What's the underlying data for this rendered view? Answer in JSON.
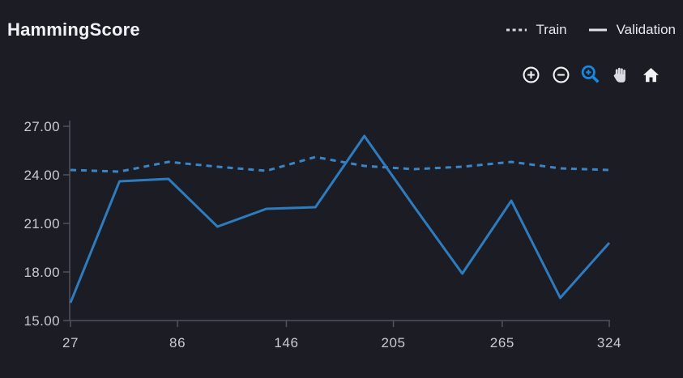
{
  "header": {
    "title": "HammingScore"
  },
  "legend": {
    "items": [
      {
        "name": "train",
        "label": "Train",
        "marker": "dashed-line",
        "marker_color": "#d6d7de"
      },
      {
        "name": "validation",
        "label": "Validation",
        "marker": "solid-line",
        "marker_color": "#e2e3e9"
      }
    ]
  },
  "toolbar": {
    "tools": [
      {
        "name": "zoom-in",
        "icon": "circle-plus-icon",
        "active": false
      },
      {
        "name": "zoom-out",
        "icon": "circle-minus-icon",
        "active": false
      },
      {
        "name": "box-zoom",
        "icon": "magnifier-plus-icon",
        "active": true
      },
      {
        "name": "pan",
        "icon": "hand-icon",
        "active": false
      },
      {
        "name": "reset-home",
        "icon": "home-icon",
        "active": false
      }
    ],
    "active_color": "#1787e0"
  },
  "colors": {
    "background": "#1c1c25",
    "axis": "#52525c",
    "tick_text": "#c9cad2",
    "title_text": "#f1f2f6",
    "train_line": "#3a85c6",
    "validation_line": "#2e7cbe"
  },
  "chart_data": {
    "type": "line",
    "title": "HammingScore",
    "x": [
      27,
      54,
      81,
      108,
      135,
      162,
      189,
      216,
      243,
      270,
      297,
      324
    ],
    "series": [
      {
        "name": "Train",
        "style": "dashed",
        "color": "#3a85c6",
        "values": [
          24.3,
          24.2,
          24.8,
          24.5,
          24.25,
          25.1,
          24.55,
          24.35,
          24.5,
          24.8,
          24.4,
          24.3
        ]
      },
      {
        "name": "Validation",
        "style": "solid",
        "color": "#2e7cbe",
        "values": [
          16.1,
          23.6,
          23.75,
          20.8,
          21.9,
          22.0,
          26.4,
          22.1,
          17.9,
          22.4,
          16.4,
          19.8
        ]
      }
    ],
    "xlabel": "",
    "ylabel": "",
    "xlim": [
      27,
      324
    ],
    "ylim": [
      15,
      27
    ],
    "x_ticks": [
      27,
      86,
      146,
      205,
      265,
      324
    ],
    "x_tick_labels": [
      "27",
      "86",
      "146",
      "205",
      "265",
      "324"
    ],
    "y_ticks": [
      15,
      18,
      21,
      24,
      27
    ],
    "y_tick_labels": [
      "15.00",
      "18.00",
      "21.00",
      "24.00",
      "27.00"
    ],
    "grid": false,
    "legend_position": "top-right"
  }
}
